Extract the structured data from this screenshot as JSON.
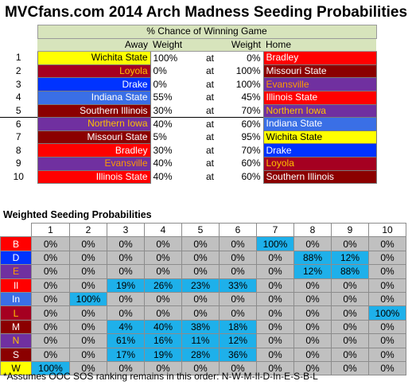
{
  "title": "MVCfans.com 2014 Arch Madness Seeding Probabilities",
  "games": {
    "header_span": "% Chance of Winning Game",
    "col_away": "Away",
    "col_weight_away": "Weight",
    "col_weight_home": "Weight",
    "col_home": "Home",
    "rows": [
      {
        "num": "1",
        "away": "Wichita State",
        "away_bg": "#ffff00",
        "away_fg": "#000000",
        "w_away": "100%",
        "at": "at",
        "w_home": "0%",
        "home": "Bradley",
        "home_bg": "#ff0000",
        "home_fg": "#ffffff"
      },
      {
        "num": "2",
        "away": "Loyola",
        "away_bg": "#a50021",
        "away_fg": "#ffc000",
        "w_away": "0%",
        "at": "at",
        "w_home": "100%",
        "home": "Missouri State",
        "home_bg": "#8b0000",
        "home_fg": "#ffffff"
      },
      {
        "num": "3",
        "away": "Drake",
        "away_bg": "#0033ff",
        "away_fg": "#ffffff",
        "w_away": "0%",
        "at": "at",
        "w_home": "100%",
        "home": "Evansville",
        "home_bg": "#7030a0",
        "home_fg": "#ff9900"
      },
      {
        "num": "4",
        "away": "Indiana State",
        "away_bg": "#3a6fe6",
        "away_fg": "#ffffff",
        "w_away": "55%",
        "at": "at",
        "w_home": "45%",
        "home": "Illinois State",
        "home_bg": "#ff0000",
        "home_fg": "#ffffff"
      },
      {
        "num": "5",
        "away": "Southern Illinois",
        "away_bg": "#8b0000",
        "away_fg": "#ffffff",
        "w_away": "30%",
        "at": "at",
        "w_home": "70%",
        "home": "Northern Iowa",
        "home_bg": "#7030a0",
        "home_fg": "#ffc000"
      },
      {
        "num": "6",
        "away": "Northern Iowa",
        "away_bg": "#7030a0",
        "away_fg": "#ffc000",
        "w_away": "40%",
        "at": "at",
        "w_home": "60%",
        "home": "Indiana State",
        "home_bg": "#3a6fe6",
        "home_fg": "#ffffff"
      },
      {
        "num": "7",
        "away": "Missouri State",
        "away_bg": "#8b0000",
        "away_fg": "#ffffff",
        "w_away": "5%",
        "at": "at",
        "w_home": "95%",
        "home": "Wichita State",
        "home_bg": "#ffff00",
        "home_fg": "#000000"
      },
      {
        "num": "8",
        "away": "Bradley",
        "away_bg": "#ff0000",
        "away_fg": "#ffffff",
        "w_away": "30%",
        "at": "at",
        "w_home": "70%",
        "home": "Drake",
        "home_bg": "#0033ff",
        "home_fg": "#ffffff"
      },
      {
        "num": "9",
        "away": "Evansville",
        "away_bg": "#7030a0",
        "away_fg": "#ff9900",
        "w_away": "40%",
        "at": "at",
        "w_home": "60%",
        "home": "Loyola",
        "home_bg": "#a50021",
        "home_fg": "#ffc000"
      },
      {
        "num": "10",
        "away": "Illinois State",
        "away_bg": "#ff0000",
        "away_fg": "#ffffff",
        "w_away": "40%",
        "at": "at",
        "w_home": "60%",
        "home": "Southern Illinois",
        "home_bg": "#8b0000",
        "home_fg": "#ffffff"
      }
    ]
  },
  "seeding": {
    "title": "Weighted Seeding Probabilities",
    "columns": [
      "1",
      "2",
      "3",
      "4",
      "5",
      "6",
      "7",
      "8",
      "9",
      "10"
    ],
    "highlight_color": "#1eb0ea",
    "rows": [
      {
        "label": "B",
        "bg": "#ff0000",
        "fg": "#ffffff",
        "values": [
          "0%",
          "0%",
          "0%",
          "0%",
          "0%",
          "0%",
          "100%",
          "0%",
          "0%",
          "0%"
        ],
        "hi": [
          6
        ]
      },
      {
        "label": "D",
        "bg": "#0033ff",
        "fg": "#ffffff",
        "values": [
          "0%",
          "0%",
          "0%",
          "0%",
          "0%",
          "0%",
          "0%",
          "88%",
          "12%",
          "0%"
        ],
        "hi": [
          7,
          8
        ]
      },
      {
        "label": "E",
        "bg": "#7030a0",
        "fg": "#ff9900",
        "values": [
          "0%",
          "0%",
          "0%",
          "0%",
          "0%",
          "0%",
          "0%",
          "12%",
          "88%",
          "0%"
        ],
        "hi": [
          7,
          8
        ]
      },
      {
        "label": "Il",
        "bg": "#ff0000",
        "fg": "#ffffff",
        "values": [
          "0%",
          "0%",
          "19%",
          "26%",
          "23%",
          "33%",
          "0%",
          "0%",
          "0%",
          "0%"
        ],
        "hi": [
          2,
          3,
          4,
          5
        ]
      },
      {
        "label": "In",
        "bg": "#3a6fe6",
        "fg": "#ffffff",
        "values": [
          "0%",
          "100%",
          "0%",
          "0%",
          "0%",
          "0%",
          "0%",
          "0%",
          "0%",
          "0%"
        ],
        "hi": [
          1
        ]
      },
      {
        "label": "L",
        "bg": "#a50021",
        "fg": "#ffc000",
        "values": [
          "0%",
          "0%",
          "0%",
          "0%",
          "0%",
          "0%",
          "0%",
          "0%",
          "0%",
          "100%"
        ],
        "hi": [
          9
        ]
      },
      {
        "label": "M",
        "bg": "#8b0000",
        "fg": "#ffffff",
        "values": [
          "0%",
          "0%",
          "4%",
          "40%",
          "38%",
          "18%",
          "0%",
          "0%",
          "0%",
          "0%"
        ],
        "hi": [
          2,
          3,
          4,
          5
        ]
      },
      {
        "label": "N",
        "bg": "#7030a0",
        "fg": "#ffc000",
        "values": [
          "0%",
          "0%",
          "61%",
          "16%",
          "11%",
          "12%",
          "0%",
          "0%",
          "0%",
          "0%"
        ],
        "hi": [
          2,
          3,
          4,
          5
        ]
      },
      {
        "label": "S",
        "bg": "#8b0000",
        "fg": "#ffffff",
        "values": [
          "0%",
          "0%",
          "17%",
          "19%",
          "28%",
          "36%",
          "0%",
          "0%",
          "0%",
          "0%"
        ],
        "hi": [
          2,
          3,
          4,
          5
        ]
      },
      {
        "label": "W",
        "bg": "#ffff00",
        "fg": "#000000",
        "values": [
          "100%",
          "0%",
          "0%",
          "0%",
          "0%",
          "0%",
          "0%",
          "0%",
          "0%",
          "0%"
        ],
        "hi": [
          0
        ]
      }
    ]
  },
  "footnote": "*Assumes OOC SOS ranking remains in this order: N-W-M-Il-D-In-E-S-B-L"
}
